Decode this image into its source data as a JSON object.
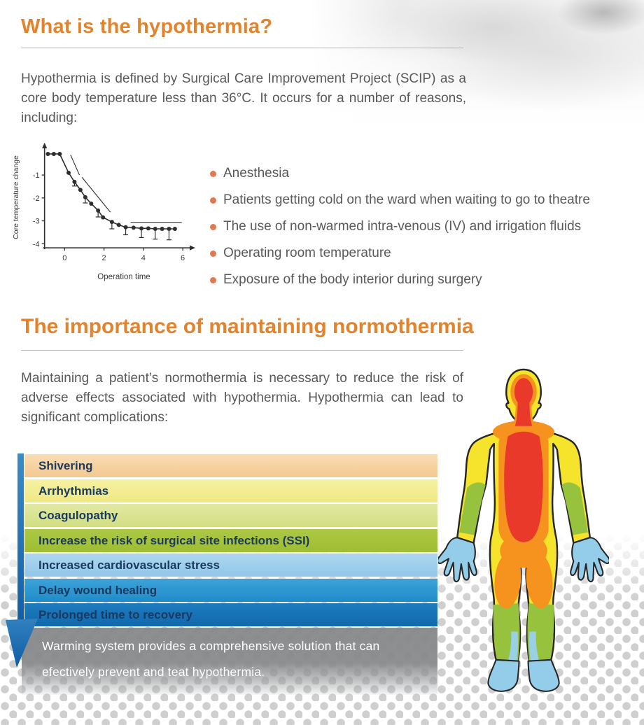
{
  "page": {
    "section1": {
      "title": "What is the hypothermia?",
      "intro": "Hypothermia is defined by Surgical Care Improvement Project (SCIP) as a core body temperature less than 36°C. It occurs for a number of reasons, including:",
      "causes": [
        "Anesthesia",
        "Patients getting cold on the ward when waiting to go to theatre",
        "The use of non-warmed intra-venous (IV) and irrigation fluids",
        "Operating room temperature",
        "Exposure of the body interior during surgery"
      ]
    },
    "section2": {
      "title": "The importance of maintaining normothermia",
      "intro": "Maintaining a patient’s normothermia is necessary to reduce the risk of adverse effects associated with hypothermia. Hypothermia can lead to significant complications:",
      "complications": [
        {
          "label": "Shivering",
          "color_top": "#f9ddb4",
          "color_bottom": "#f4c890"
        },
        {
          "label": "Arrhythmias",
          "color_top": "#f5f2a2",
          "color_bottom": "#efe884"
        },
        {
          "label": "Coagulopathy",
          "color_top": "#e1e9a4",
          "color_bottom": "#d2de83"
        },
        {
          "label": "Increase the risk of surgical site infections (SSI)",
          "color_top": "#adc845",
          "color_bottom": "#9ebd32"
        },
        {
          "label": "Increased cardiovascular stress",
          "color_top": "#aed7f0",
          "color_bottom": "#90c7e9"
        },
        {
          "label": "Delay wound healing",
          "color_top": "#3da2d8",
          "color_bottom": "#1e8cca"
        },
        {
          "label": "Prolonged time to recovery",
          "color_top": "#1d7cbe",
          "color_bottom": "#1269ad"
        }
      ],
      "note": "Warming system provides a comprehensive solution that can efectively prevent and teat hypothermia."
    }
  },
  "chart_data": {
    "type": "line",
    "title": "",
    "xlabel": "Operation time",
    "ylabel": "Core temperature change",
    "xlim": [
      -1.15,
      6.6
    ],
    "ylim": [
      -4.45,
      0.5
    ],
    "axis_x": -1.02,
    "axis_y": -4.18,
    "xticks": [
      0,
      2,
      4,
      6
    ],
    "yticks": [
      -1,
      -2,
      -3,
      -4
    ],
    "grid": false,
    "legend": "none",
    "ink": "#2e2e2e",
    "points": [
      [
        -0.85,
        -0.08,
        0
      ],
      [
        -0.55,
        -0.08,
        0
      ],
      [
        -0.25,
        -0.08,
        0
      ],
      [
        0.2,
        -0.9,
        0
      ],
      [
        0.5,
        -1.3,
        0.18
      ],
      [
        0.8,
        -1.65,
        0
      ],
      [
        1.05,
        -1.97,
        0.25
      ],
      [
        1.35,
        -2.25,
        0
      ],
      [
        1.7,
        -2.55,
        0.28
      ],
      [
        1.95,
        -2.85,
        0
      ],
      [
        2.4,
        -3.05,
        0.3
      ],
      [
        2.75,
        -3.18,
        0
      ],
      [
        3.1,
        -3.28,
        0.33
      ],
      [
        3.5,
        -3.3,
        0
      ],
      [
        3.9,
        -3.33,
        0.4
      ],
      [
        4.25,
        -3.33,
        0
      ],
      [
        4.6,
        -3.35,
        0.45
      ],
      [
        4.95,
        -3.35,
        0
      ],
      [
        5.3,
        -3.35,
        0.48
      ],
      [
        5.6,
        -3.35,
        0
      ]
    ],
    "annotation_lines": [
      [
        0.3,
        -0.12,
        0.75,
        -1.0
      ],
      [
        0.88,
        -1.1,
        2.32,
        -2.62
      ],
      [
        3.35,
        -3.07,
        5.95,
        -3.07
      ]
    ]
  },
  "colors": {
    "heading": "#e2832d",
    "body_text": "#58595b",
    "bullet": "#dd7a52",
    "bar_text": "#1b3a60",
    "arrow_blue": "#1166ad",
    "note_bg": "#8a8c8e"
  }
}
